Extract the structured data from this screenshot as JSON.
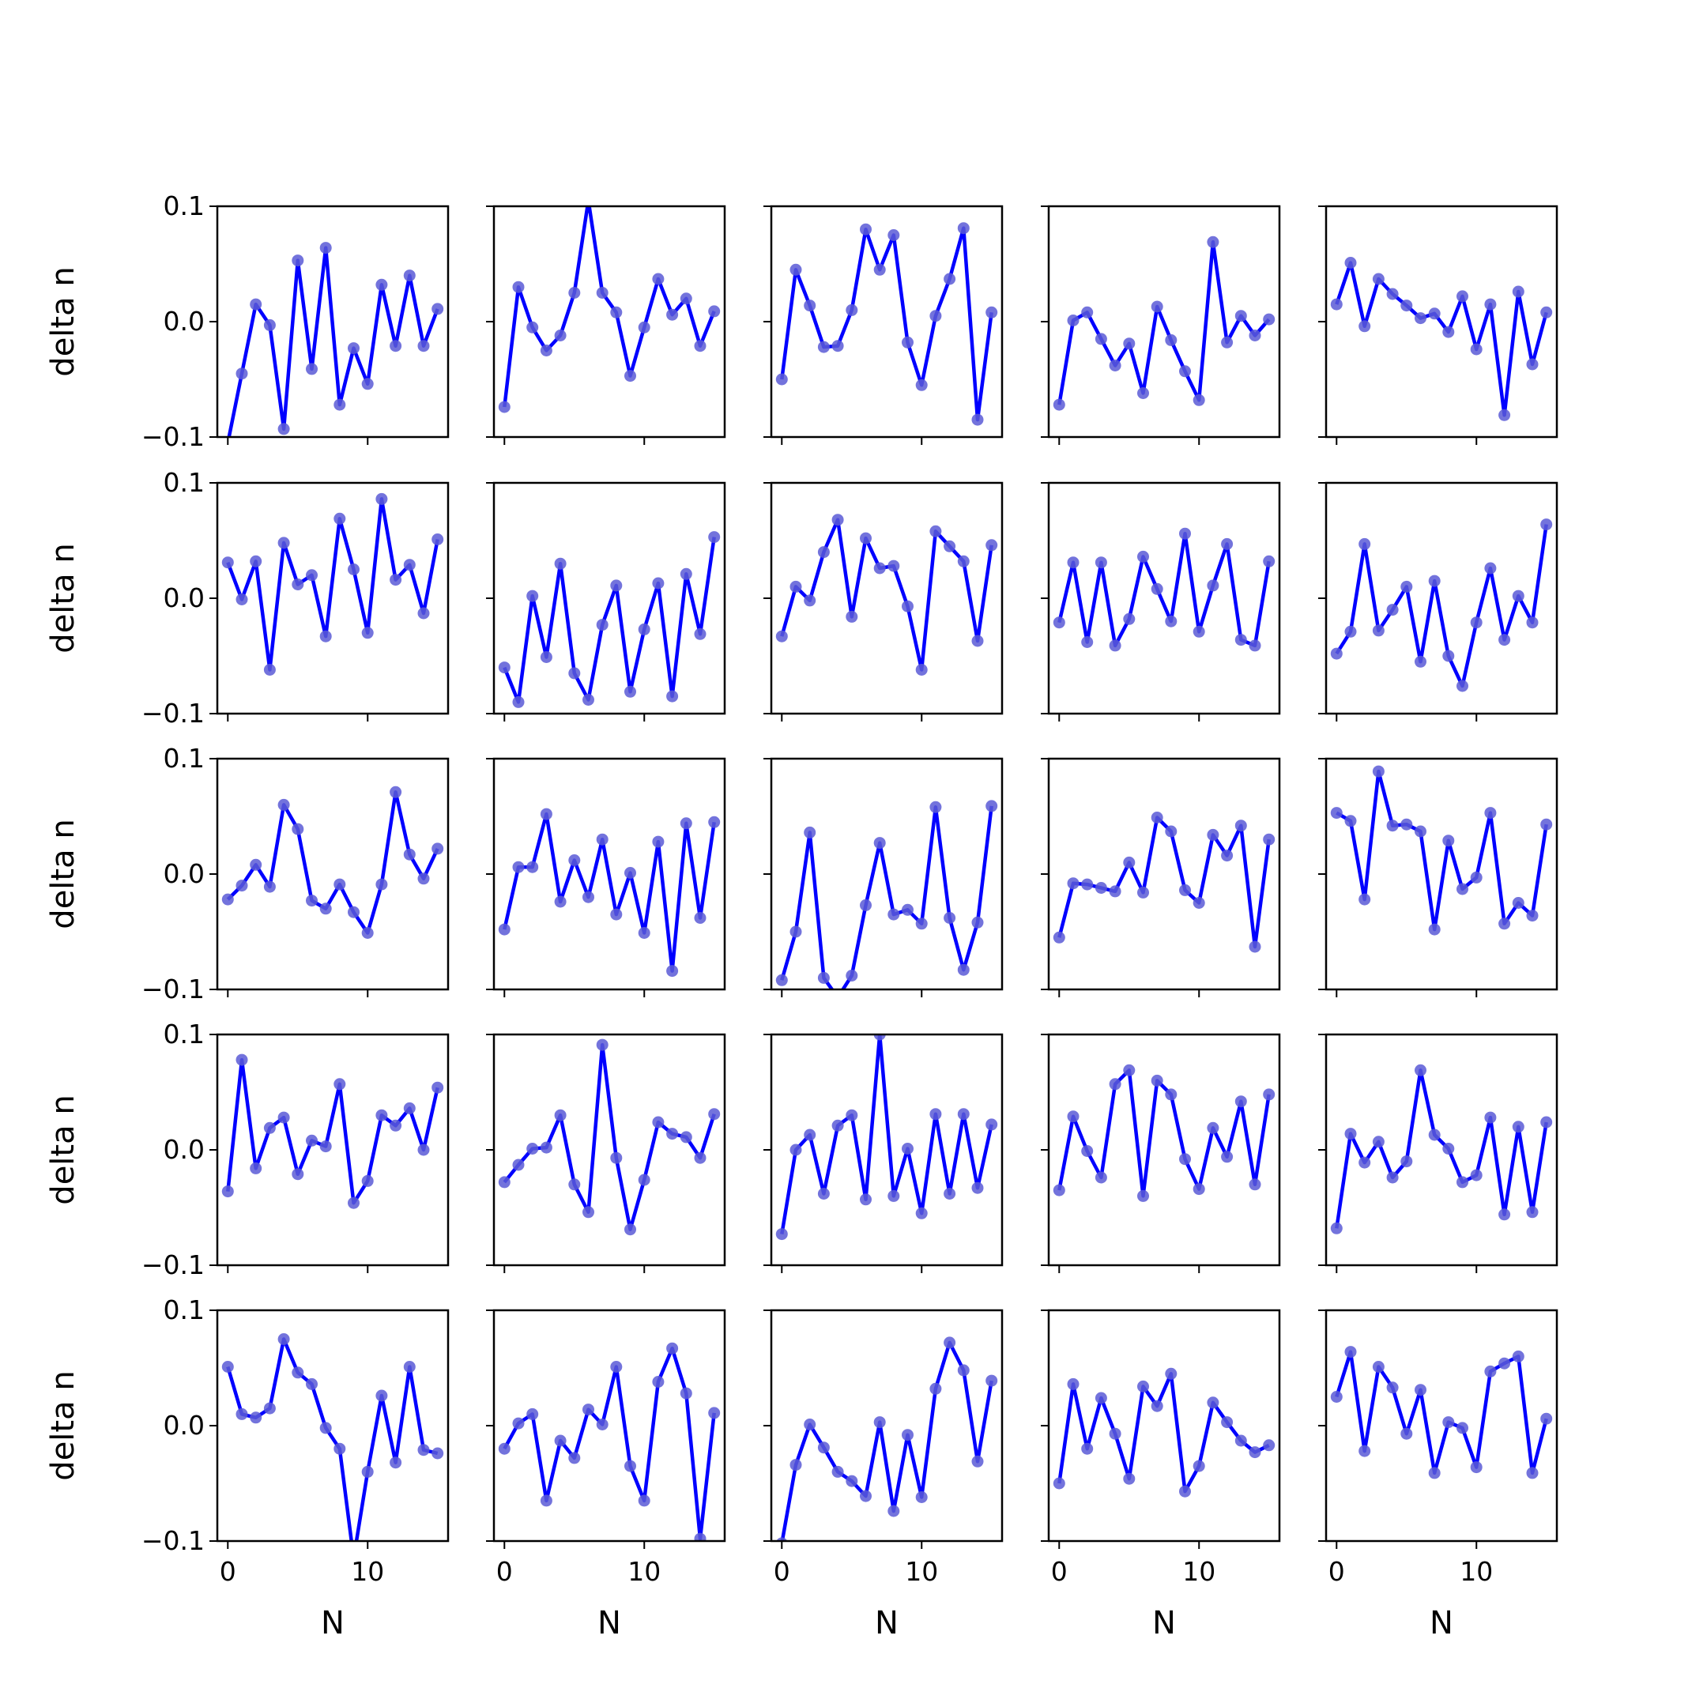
{
  "chart_data": {
    "type": "line",
    "layout": "5x5 grid of subplots, shared axes",
    "xlabel": "N",
    "ylabel": "delta n",
    "xlim": [
      -0.75,
      15.75
    ],
    "ylim": [
      -0.1,
      0.1
    ],
    "xticks": [
      0,
      10
    ],
    "xtick_labels": [
      "0",
      "10"
    ],
    "yticks": [
      -0.1,
      0.0,
      0.1
    ],
    "ytick_labels": [
      "−0.1",
      "0.0",
      "0.1"
    ],
    "line_color": "#0000ff",
    "marker_color": "#5b5bd6",
    "x": [
      0,
      1,
      2,
      3,
      4,
      5,
      6,
      7,
      8,
      9,
      10,
      11,
      12,
      13,
      14,
      15
    ],
    "panels": [
      {
        "values": [
          -0.105,
          -0.045,
          0.015,
          -0.003,
          -0.093,
          0.053,
          -0.041,
          0.064,
          -0.072,
          -0.023,
          -0.054,
          0.032,
          -0.021,
          0.04,
          -0.021,
          0.011
        ]
      },
      {
        "values": [
          -0.074,
          0.03,
          -0.005,
          -0.025,
          -0.012,
          0.025,
          0.105,
          0.025,
          0.008,
          -0.047,
          -0.005,
          0.037,
          0.006,
          0.02,
          -0.021,
          0.009
        ]
      },
      {
        "values": [
          -0.05,
          0.045,
          0.014,
          -0.022,
          -0.021,
          0.01,
          0.08,
          0.045,
          0.075,
          -0.018,
          -0.055,
          0.005,
          0.037,
          0.081,
          -0.085,
          0.008
        ]
      },
      {
        "values": [
          -0.072,
          0.001,
          0.008,
          -0.015,
          -0.038,
          -0.019,
          -0.062,
          0.013,
          -0.016,
          -0.043,
          -0.068,
          0.069,
          -0.018,
          0.005,
          -0.012,
          0.002
        ]
      },
      {
        "values": [
          0.015,
          0.051,
          -0.004,
          0.037,
          0.024,
          0.014,
          0.003,
          0.007,
          -0.009,
          0.022,
          -0.024,
          0.015,
          -0.081,
          0.026,
          -0.037,
          0.008
        ]
      },
      {
        "values": [
          0.031,
          -0.001,
          0.032,
          -0.062,
          0.048,
          0.012,
          0.02,
          -0.033,
          0.069,
          0.025,
          -0.03,
          0.086,
          0.016,
          0.029,
          -0.013,
          0.051
        ]
      },
      {
        "values": [
          -0.06,
          -0.09,
          0.002,
          -0.051,
          0.03,
          -0.065,
          -0.088,
          -0.023,
          0.011,
          -0.081,
          -0.027,
          0.013,
          -0.085,
          0.021,
          -0.031,
          0.053
        ]
      },
      {
        "values": [
          -0.033,
          0.01,
          -0.002,
          0.04,
          0.068,
          -0.016,
          0.052,
          0.026,
          0.028,
          -0.007,
          -0.062,
          0.058,
          0.045,
          0.032,
          -0.037,
          0.046
        ]
      },
      {
        "values": [
          -0.021,
          0.031,
          -0.038,
          0.031,
          -0.041,
          -0.018,
          0.036,
          0.008,
          -0.02,
          0.056,
          -0.029,
          0.011,
          0.047,
          -0.036,
          -0.041,
          0.032
        ]
      },
      {
        "values": [
          -0.048,
          -0.029,
          0.047,
          -0.028,
          -0.01,
          0.01,
          -0.055,
          0.015,
          -0.05,
          -0.076,
          -0.021,
          0.026,
          -0.036,
          0.002,
          -0.021,
          0.064
        ]
      },
      {
        "values": [
          -0.022,
          -0.01,
          0.008,
          -0.011,
          0.06,
          0.039,
          -0.023,
          -0.03,
          -0.009,
          -0.033,
          -0.051,
          -0.009,
          0.071,
          0.017,
          -0.004,
          0.022
        ]
      },
      {
        "values": [
          -0.048,
          0.006,
          0.006,
          0.052,
          -0.024,
          0.012,
          -0.02,
          0.03,
          -0.035,
          0.001,
          -0.051,
          0.028,
          -0.084,
          0.044,
          -0.038,
          0.045
        ]
      },
      {
        "values": [
          -0.092,
          -0.05,
          0.036,
          -0.09,
          -0.107,
          -0.088,
          -0.027,
          0.027,
          -0.035,
          -0.031,
          -0.043,
          0.058,
          -0.038,
          -0.083,
          -0.042,
          0.059
        ]
      },
      {
        "values": [
          -0.055,
          -0.008,
          -0.009,
          -0.012,
          -0.015,
          0.01,
          -0.016,
          0.049,
          0.037,
          -0.014,
          -0.025,
          0.034,
          0.016,
          0.042,
          -0.063,
          0.03
        ]
      },
      {
        "values": [
          0.053,
          0.046,
          -0.022,
          0.089,
          0.042,
          0.043,
          0.037,
          -0.048,
          0.029,
          -0.013,
          -0.003,
          0.053,
          -0.043,
          -0.025,
          -0.036,
          0.043
        ]
      },
      {
        "values": [
          -0.036,
          0.078,
          -0.016,
          0.019,
          0.028,
          -0.021,
          0.008,
          0.003,
          0.057,
          -0.046,
          -0.027,
          0.03,
          0.021,
          0.036,
          0.0,
          0.054
        ]
      },
      {
        "values": [
          -0.028,
          -0.013,
          0.001,
          0.002,
          0.03,
          -0.03,
          -0.054,
          0.091,
          -0.007,
          -0.069,
          -0.026,
          0.024,
          0.014,
          0.011,
          -0.007,
          0.031
        ]
      },
      {
        "values": [
          -0.073,
          0.0,
          0.013,
          -0.038,
          0.021,
          0.03,
          -0.043,
          0.1,
          -0.04,
          0.001,
          -0.055,
          0.031,
          -0.038,
          0.031,
          -0.033,
          0.022
        ]
      },
      {
        "values": [
          -0.035,
          0.029,
          -0.001,
          -0.024,
          0.057,
          0.069,
          -0.04,
          0.06,
          0.048,
          -0.008,
          -0.034,
          0.019,
          -0.006,
          0.042,
          -0.03,
          0.048
        ]
      },
      {
        "values": [
          -0.068,
          0.014,
          -0.011,
          0.007,
          -0.024,
          -0.01,
          0.069,
          0.013,
          0.001,
          -0.028,
          -0.022,
          0.028,
          -0.056,
          0.02,
          -0.054,
          0.024
        ]
      },
      {
        "values": [
          0.051,
          0.01,
          0.007,
          0.015,
          0.075,
          0.046,
          0.036,
          -0.002,
          -0.02,
          -0.115,
          -0.04,
          0.026,
          -0.032,
          0.051,
          -0.021,
          -0.024
        ]
      },
      {
        "values": [
          -0.02,
          0.002,
          0.01,
          -0.065,
          -0.013,
          -0.028,
          0.014,
          0.001,
          0.051,
          -0.035,
          -0.065,
          0.038,
          0.067,
          0.028,
          -0.098,
          0.011
        ]
      },
      {
        "values": [
          -0.102,
          -0.034,
          0.001,
          -0.019,
          -0.04,
          -0.048,
          -0.061,
          0.003,
          -0.074,
          -0.008,
          -0.062,
          0.032,
          0.072,
          0.048,
          -0.031,
          0.039
        ]
      },
      {
        "values": [
          -0.05,
          0.036,
          -0.02,
          0.024,
          -0.007,
          -0.046,
          0.034,
          0.017,
          0.045,
          -0.057,
          -0.035,
          0.02,
          0.003,
          -0.013,
          -0.023,
          -0.017
        ]
      },
      {
        "values": [
          0.025,
          0.064,
          -0.022,
          0.051,
          0.033,
          -0.007,
          0.031,
          -0.041,
          0.003,
          -0.002,
          -0.036,
          0.047,
          0.054,
          0.06,
          -0.041,
          0.006
        ]
      }
    ]
  }
}
